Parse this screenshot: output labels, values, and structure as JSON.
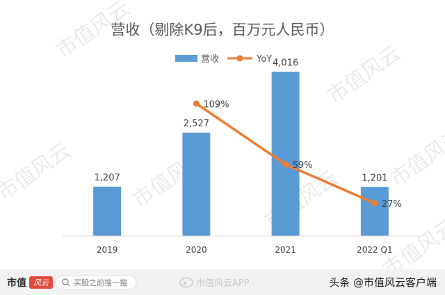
{
  "chart_data": {
    "type": "bar",
    "title": "营收（剔除K9后，百万元人民币）",
    "categories": [
      "2019",
      "2020",
      "2021",
      "2022 Q1"
    ],
    "series": [
      {
        "name": "营收",
        "type": "bar",
        "color": "#5b9bd5",
        "values": [
          1207,
          2527,
          4016,
          1201
        ],
        "labels": [
          "1,207",
          "2,527",
          "4,016",
          "1,201"
        ]
      },
      {
        "name": "YoY",
        "type": "line",
        "color": "#ed7d31",
        "values": [
          null,
          109,
          59,
          27
        ],
        "labels": [
          "",
          "109%",
          "59%",
          "27%"
        ]
      }
    ],
    "ylim": [
      0,
      4500
    ],
    "yoy_range": [
      0,
      140
    ],
    "legend_position": "top-center",
    "grid": false
  },
  "watermark": {
    "text": "市值风云"
  },
  "footer": {
    "logo_text": "市值",
    "logo_script": "风云",
    "search_placeholder": "买股之前搜一搜",
    "weibo_text": "市值风云APP",
    "credit_text": "头条 @市值风云客户端"
  },
  "icons": {
    "search": "search-icon",
    "weibo": "weibo-icon"
  }
}
